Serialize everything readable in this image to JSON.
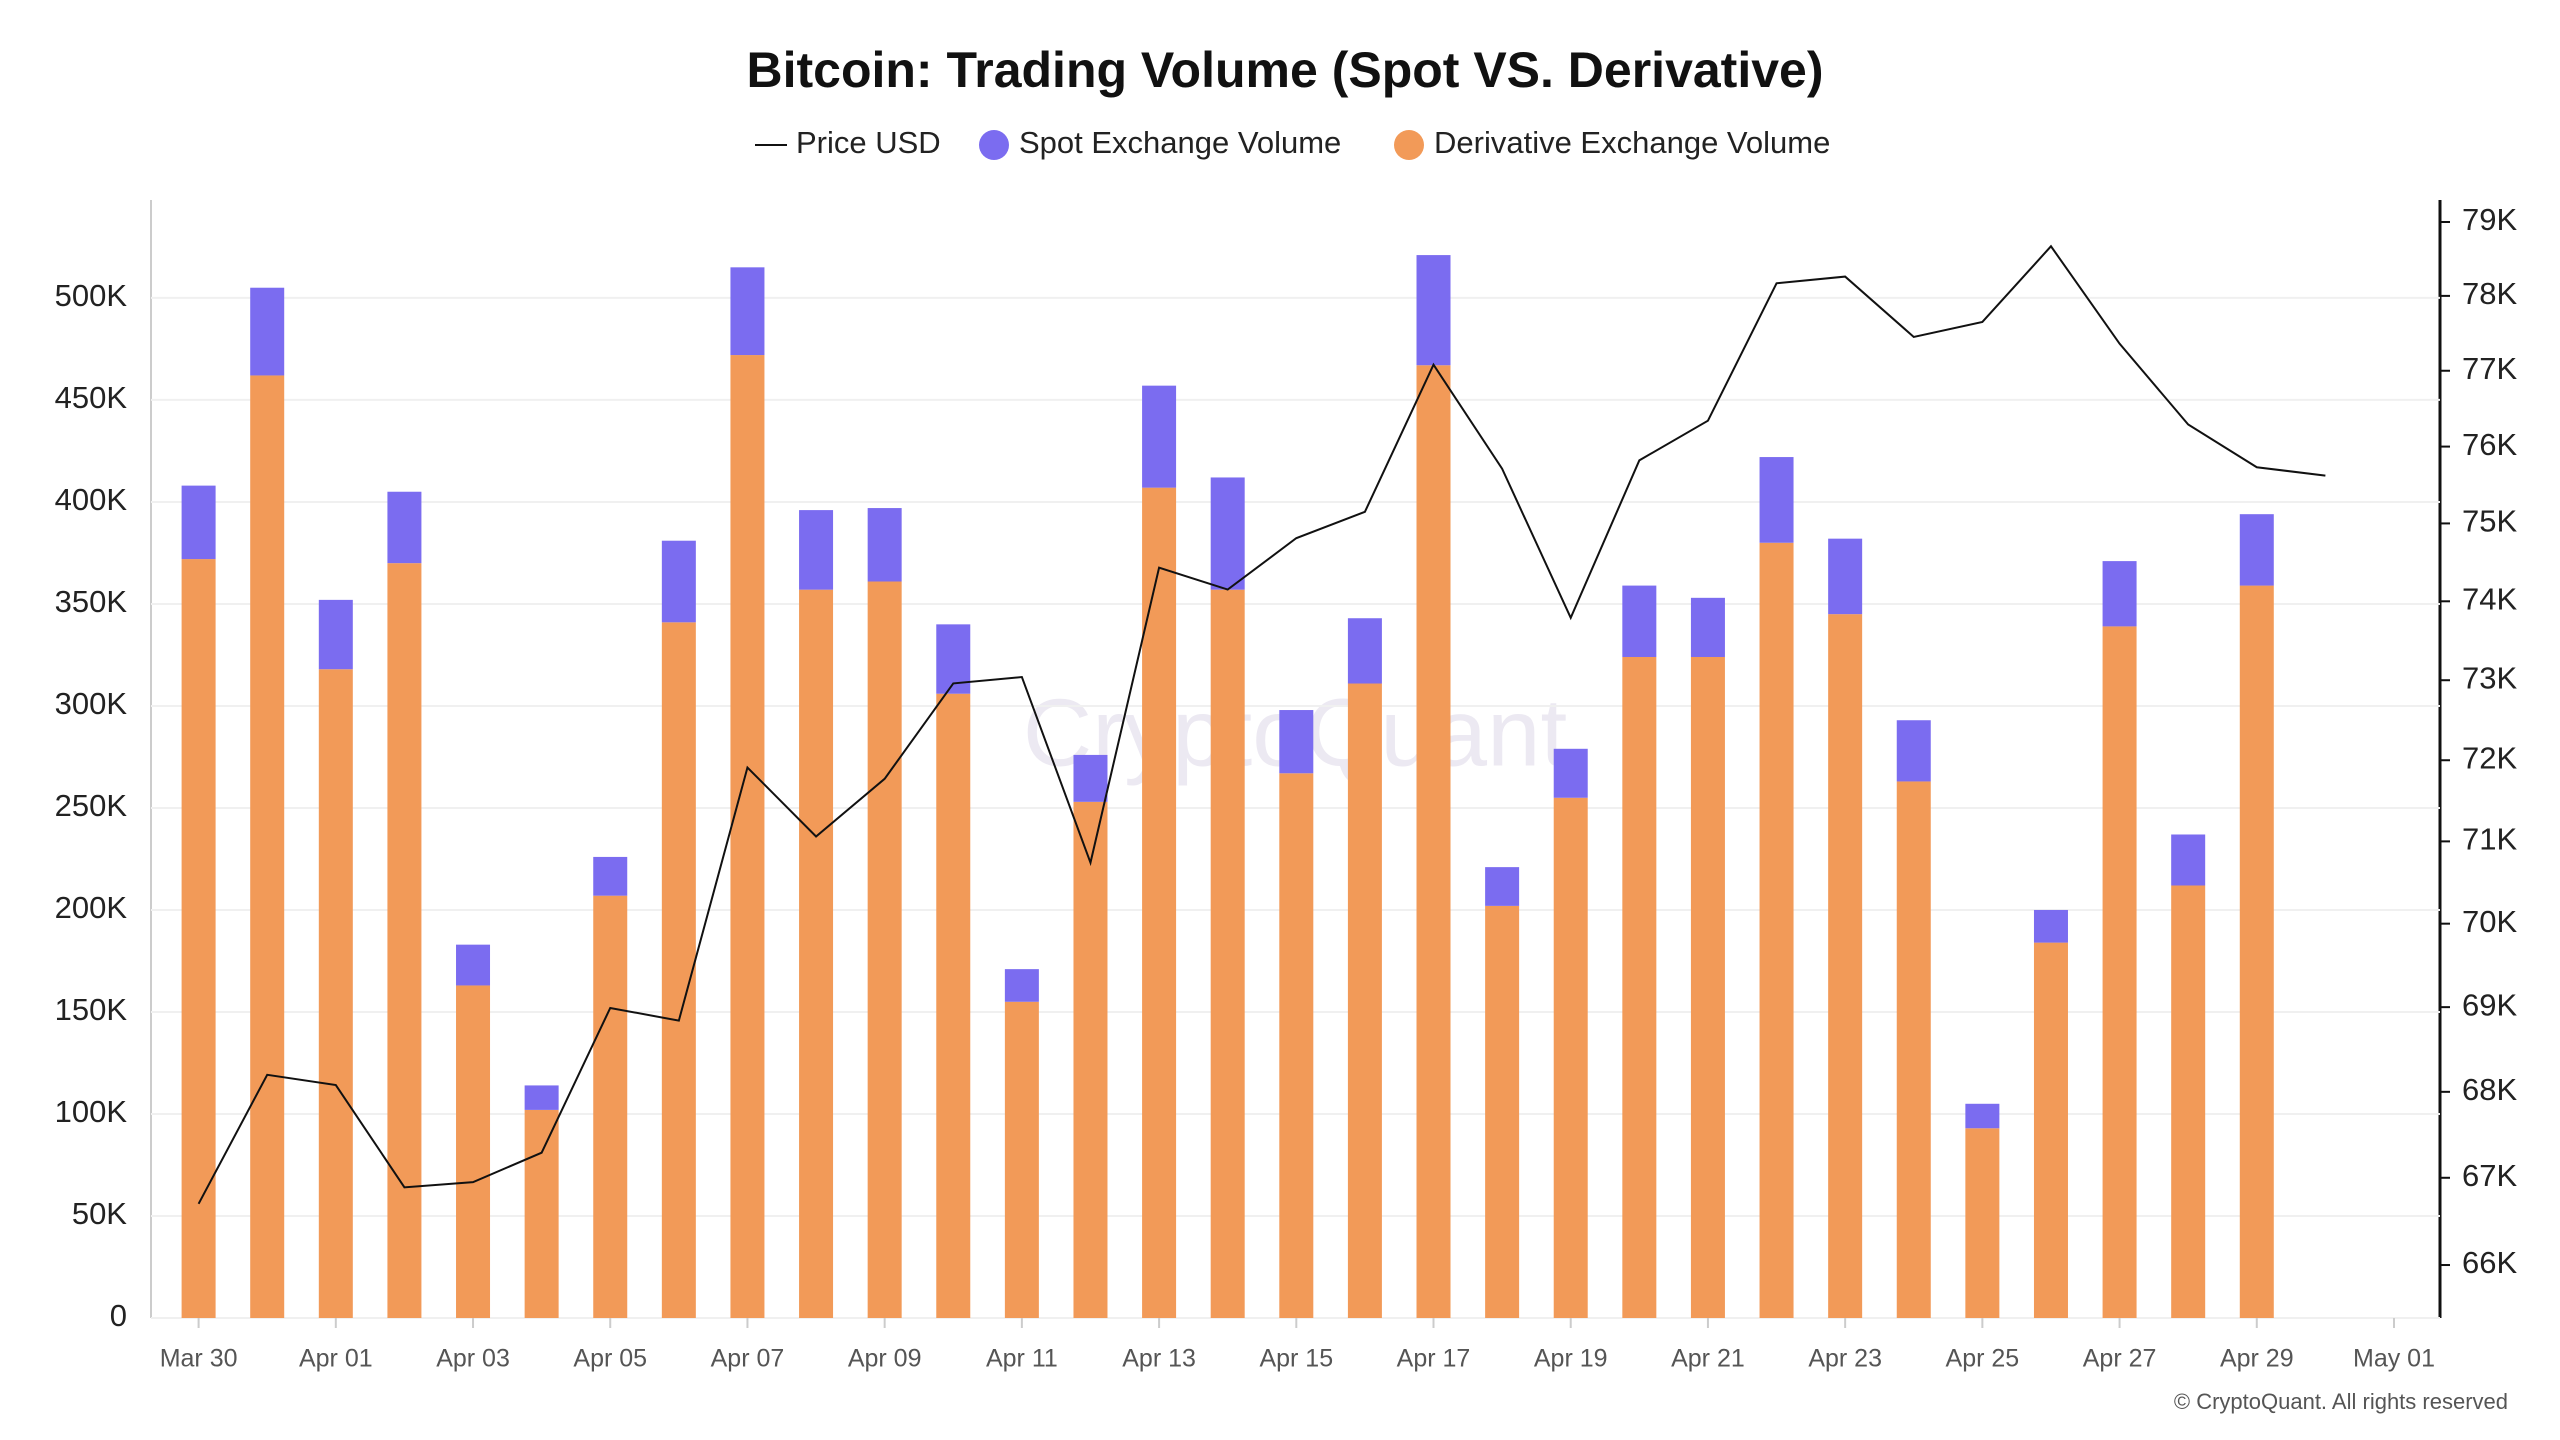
{
  "chart_data": {
    "type": "bar",
    "title": "Bitcoin: Trading Volume (Spot VS. Derivative)",
    "watermark": "CryptoQuant",
    "copyright": "© CryptoQuant. All rights reserved",
    "categories": [
      "Mar 30",
      null,
      "Apr 01",
      null,
      "Apr 03",
      null,
      "Apr 05",
      null,
      "Apr 07",
      null,
      "Apr 09",
      null,
      "Apr 11",
      null,
      "Apr 13",
      null,
      "Apr 15",
      null,
      "Apr 17",
      null,
      "Apr 19",
      null,
      "Apr 21",
      null,
      "Apr 23",
      null,
      "Apr 25",
      null,
      "Apr 27",
      null,
      "Apr 29",
      null,
      "May 01"
    ],
    "series": [
      {
        "name": "Price USD",
        "type": "line",
        "axis": "y2",
        "color": "#111111",
        "values": [
          66700,
          68200,
          68080,
          66890,
          66950,
          67290,
          68990,
          68840,
          71910,
          71060,
          71770,
          72960,
          73040,
          70740,
          74430,
          74150,
          74810,
          75150,
          77080,
          75710,
          73790,
          75820,
          76340,
          78170,
          78260,
          77450,
          77650,
          78670,
          77360,
          76290,
          75730,
          75620,
          null
        ]
      },
      {
        "name": "Spot Exchange Volume",
        "type": "bar",
        "color": "#7b6cf0",
        "values": [
          36000,
          43000,
          34000,
          35000,
          20000,
          12000,
          19000,
          40000,
          43000,
          39000,
          36000,
          34000,
          16000,
          23000,
          50000,
          55000,
          31000,
          32000,
          54000,
          19000,
          24000,
          35000,
          29000,
          42000,
          37000,
          30000,
          12000,
          16000,
          32000,
          25000,
          35000,
          null,
          null
        ]
      },
      {
        "name": "Derivative Exchange Volume",
        "type": "bar",
        "color": "#f29a58",
        "values": [
          372000,
          462000,
          318000,
          370000,
          163000,
          102000,
          207000,
          341000,
          472000,
          357000,
          361000,
          306000,
          155000,
          253000,
          407000,
          357000,
          267000,
          311000,
          467000,
          202000,
          255000,
          324000,
          324000,
          380000,
          345000,
          263000,
          93000,
          184000,
          339000,
          212000,
          359000,
          null,
          null
        ]
      }
    ],
    "ylim": [
      0,
      548000
    ],
    "yticks": [
      0,
      {
        "value": 50000,
        "label": "50K"
      },
      {
        "value": 100000,
        "label": "100K"
      },
      {
        "value": 150000,
        "label": "150K"
      },
      {
        "value": 200000,
        "label": "200K"
      },
      {
        "value": 250000,
        "label": "250K"
      },
      {
        "value": 300000,
        "label": "300K"
      },
      {
        "value": 350000,
        "label": "350K"
      },
      {
        "value": 400000,
        "label": "400K"
      },
      {
        "value": 450000,
        "label": "450K"
      },
      {
        "value": 500000,
        "label": "500K"
      }
    ],
    "y2lim": [
      65400,
      79300
    ],
    "y2log": true,
    "y2ticks": [
      {
        "value": 66000,
        "label": "66K"
      },
      {
        "value": 67000,
        "label": "67K"
      },
      {
        "value": 68000,
        "label": "68K"
      },
      {
        "value": 69000,
        "label": "69K"
      },
      {
        "value": 70000,
        "label": "70K"
      },
      {
        "value": 71000,
        "label": "71K"
      },
      {
        "value": 72000,
        "label": "72K"
      },
      {
        "value": 73000,
        "label": "73K"
      },
      {
        "value": 74000,
        "label": "74K"
      },
      {
        "value": 75000,
        "label": "75K"
      },
      {
        "value": 76000,
        "label": "76K"
      },
      {
        "value": 77000,
        "label": "77K"
      },
      {
        "value": 78000,
        "label": "78K"
      },
      {
        "value": 79000,
        "label": "79K"
      }
    ],
    "grid": true
  }
}
